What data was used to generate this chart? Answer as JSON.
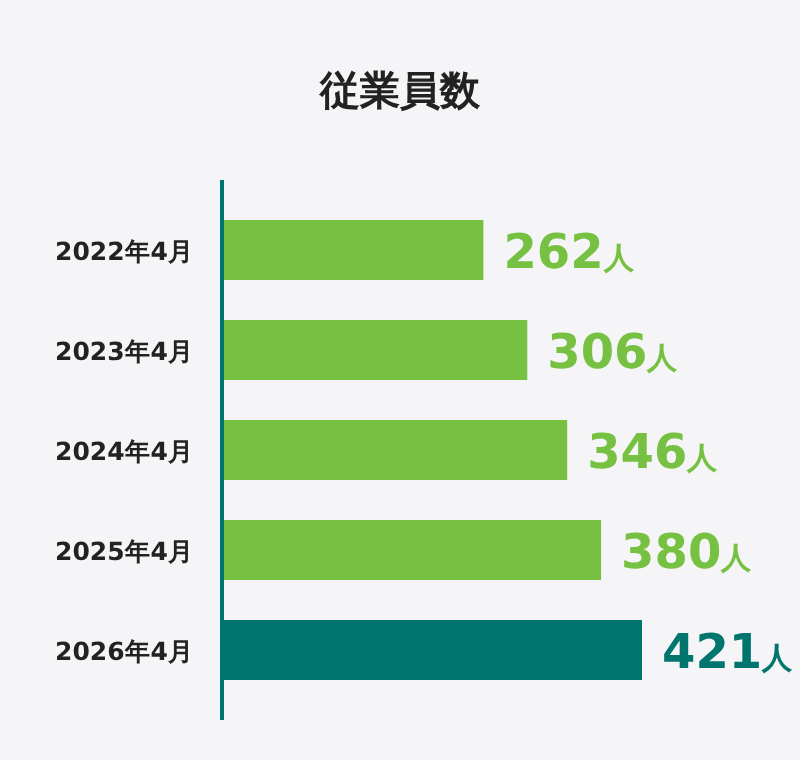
{
  "chart_data": {
    "type": "bar",
    "orientation": "horizontal",
    "title": "従業員数",
    "categories": [
      "2022年4月",
      "2023年4月",
      "2024年4月",
      "2025年4月",
      "2026年4月"
    ],
    "values": [
      262,
      306,
      346,
      380,
      421
    ],
    "colors": [
      "#76c142",
      "#76c142",
      "#76c142",
      "#76c142",
      "#00756e"
    ],
    "value_labels": [
      "262人",
      "306人",
      "346人",
      "380人",
      "421人"
    ]
  }
}
